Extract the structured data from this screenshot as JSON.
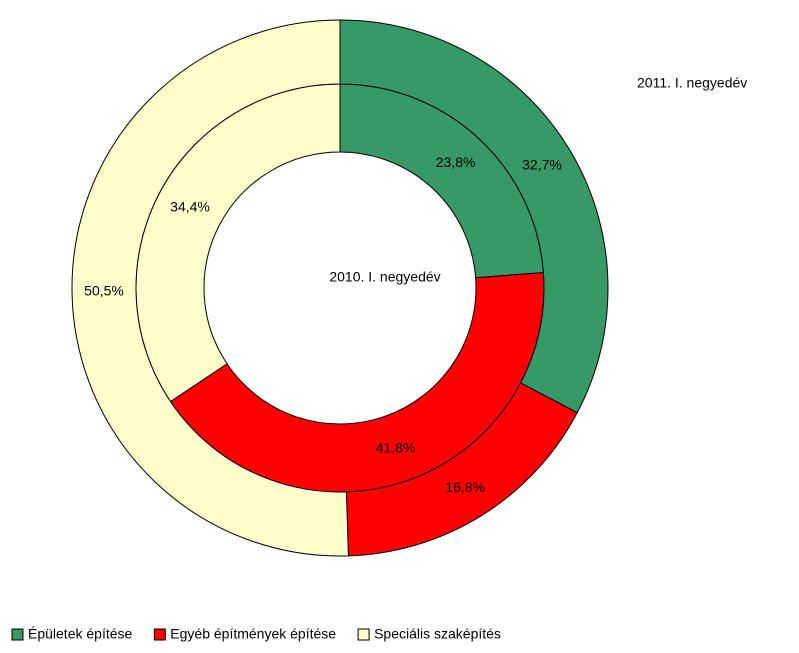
{
  "chart_data": {
    "type": "donut",
    "categories": [
      "Épületek építése",
      "Egyéb építmények építése",
      "Speciális szaképítés"
    ],
    "colors": [
      "#379966",
      "#ff0000",
      "#ffffcc"
    ],
    "series": [
      {
        "name": "2010. I. negyedév",
        "values": [
          23.8,
          41.8,
          34.4
        ],
        "value_labels": [
          "23,8%",
          "41,8%",
          "34,4%"
        ]
      },
      {
        "name": "2011. I. negyedév",
        "values": [
          32.7,
          16.8,
          50.5
        ],
        "value_labels": [
          "32,7%",
          "16,8%",
          "50,5%"
        ]
      }
    ]
  }
}
